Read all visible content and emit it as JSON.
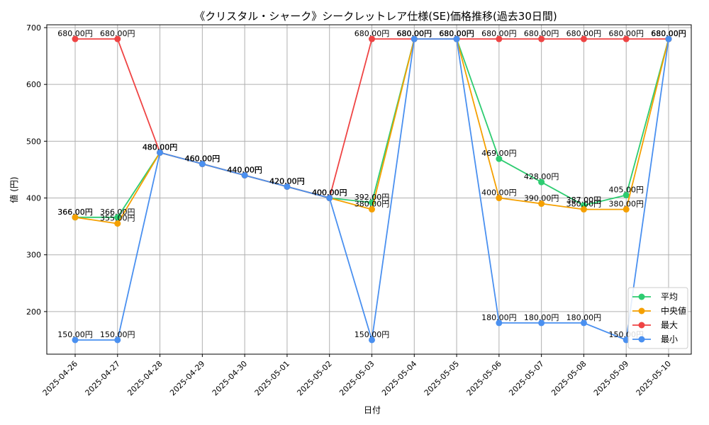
{
  "chart_data": {
    "type": "line",
    "title": "《クリスタル・シャーク》シークレットレア仕様(SE)価格推移(過去30日間)",
    "xlabel": "日付",
    "ylabel": "値 (円)",
    "categories": [
      "2025-04-26",
      "2025-04-27",
      "2025-04-28",
      "2025-04-29",
      "2025-04-30",
      "2025-05-01",
      "2025-05-02",
      "2025-05-03",
      "2025-05-04",
      "2025-05-05",
      "2025-05-06",
      "2025-05-07",
      "2025-05-08",
      "2025-05-09",
      "2025-05-10"
    ],
    "ylim": [
      125,
      705
    ],
    "yticks": [
      200,
      300,
      400,
      500,
      600,
      700
    ],
    "grid": true,
    "legend_position": "bottom-right",
    "value_suffix": "円",
    "series": [
      {
        "name": "平均",
        "color": "#2ecc71",
        "values": [
          366,
          366,
          480,
          460,
          440,
          420,
          400,
          392,
          680,
          680,
          469,
          428,
          387,
          405,
          680
        ]
      },
      {
        "name": "中央値",
        "color": "#f5a000",
        "values": [
          366,
          355,
          480,
          460,
          440,
          420,
          400,
          380,
          680,
          680,
          400,
          390,
          380,
          380,
          680
        ]
      },
      {
        "name": "最大",
        "color": "#ef4444",
        "values": [
          680,
          680,
          480,
          460,
          440,
          420,
          400,
          680,
          680,
          680,
          680,
          680,
          680,
          680,
          680
        ]
      },
      {
        "name": "最小",
        "color": "#4a90f0",
        "values": [
          150,
          150,
          480,
          460,
          440,
          420,
          400,
          150,
          680,
          680,
          180,
          180,
          180,
          150,
          680
        ]
      }
    ]
  }
}
